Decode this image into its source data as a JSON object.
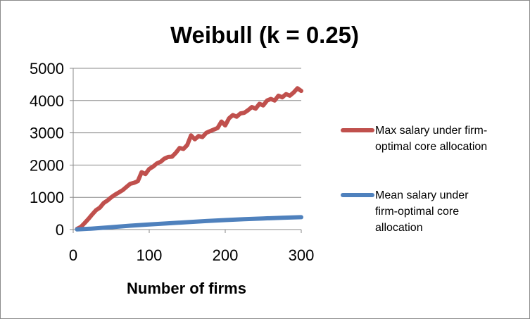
{
  "chart_data": {
    "type": "line",
    "title": "Weibull (k = 0.25)",
    "xlabel": "Number of firms",
    "ylabel": "",
    "xlim": [
      0,
      300
    ],
    "ylim": [
      0,
      5000
    ],
    "x_ticks": [
      0,
      100,
      200,
      300
    ],
    "y_ticks": [
      0,
      1000,
      2000,
      3000,
      4000,
      5000
    ],
    "grid": "horizontal",
    "legend_position": "right",
    "series": [
      {
        "name": "Max salary under firm-optimal core allocation",
        "color": "#C0504D",
        "legend_lines": [
          "Max salary under firm-",
          "optimal core allocation"
        ],
        "x": [
          5,
          10,
          15,
          20,
          25,
          30,
          35,
          40,
          45,
          50,
          55,
          60,
          65,
          70,
          75,
          80,
          85,
          90,
          95,
          100,
          105,
          110,
          115,
          120,
          125,
          130,
          135,
          140,
          145,
          150,
          155,
          160,
          165,
          170,
          175,
          180,
          185,
          190,
          195,
          200,
          205,
          210,
          215,
          220,
          225,
          230,
          235,
          240,
          245,
          250,
          255,
          260,
          265,
          270,
          275,
          280,
          285,
          290,
          295,
          300
        ],
        "y": [
          20,
          80,
          200,
          330,
          470,
          600,
          680,
          820,
          900,
          1000,
          1080,
          1150,
          1220,
          1320,
          1420,
          1450,
          1500,
          1780,
          1720,
          1880,
          1950,
          2050,
          2100,
          2200,
          2250,
          2260,
          2380,
          2530,
          2500,
          2620,
          2920,
          2800,
          2900,
          2870,
          3000,
          3050,
          3100,
          3150,
          3350,
          3230,
          3450,
          3550,
          3500,
          3600,
          3620,
          3700,
          3800,
          3750,
          3900,
          3850,
          4000,
          4050,
          4000,
          4150,
          4100,
          4200,
          4150,
          4250,
          4380,
          4300
        ]
      },
      {
        "name": "Mean salary under firm-optimal core allocation",
        "color": "#4F81BD",
        "legend_lines": [
          "Mean salary under",
          "firm-optimal core",
          "allocation"
        ],
        "x": [
          5,
          25,
          50,
          75,
          100,
          125,
          150,
          175,
          200,
          225,
          250,
          275,
          300
        ],
        "y": [
          5,
          30,
          75,
          120,
          160,
          195,
          230,
          265,
          295,
          320,
          345,
          365,
          385
        ]
      }
    ]
  }
}
